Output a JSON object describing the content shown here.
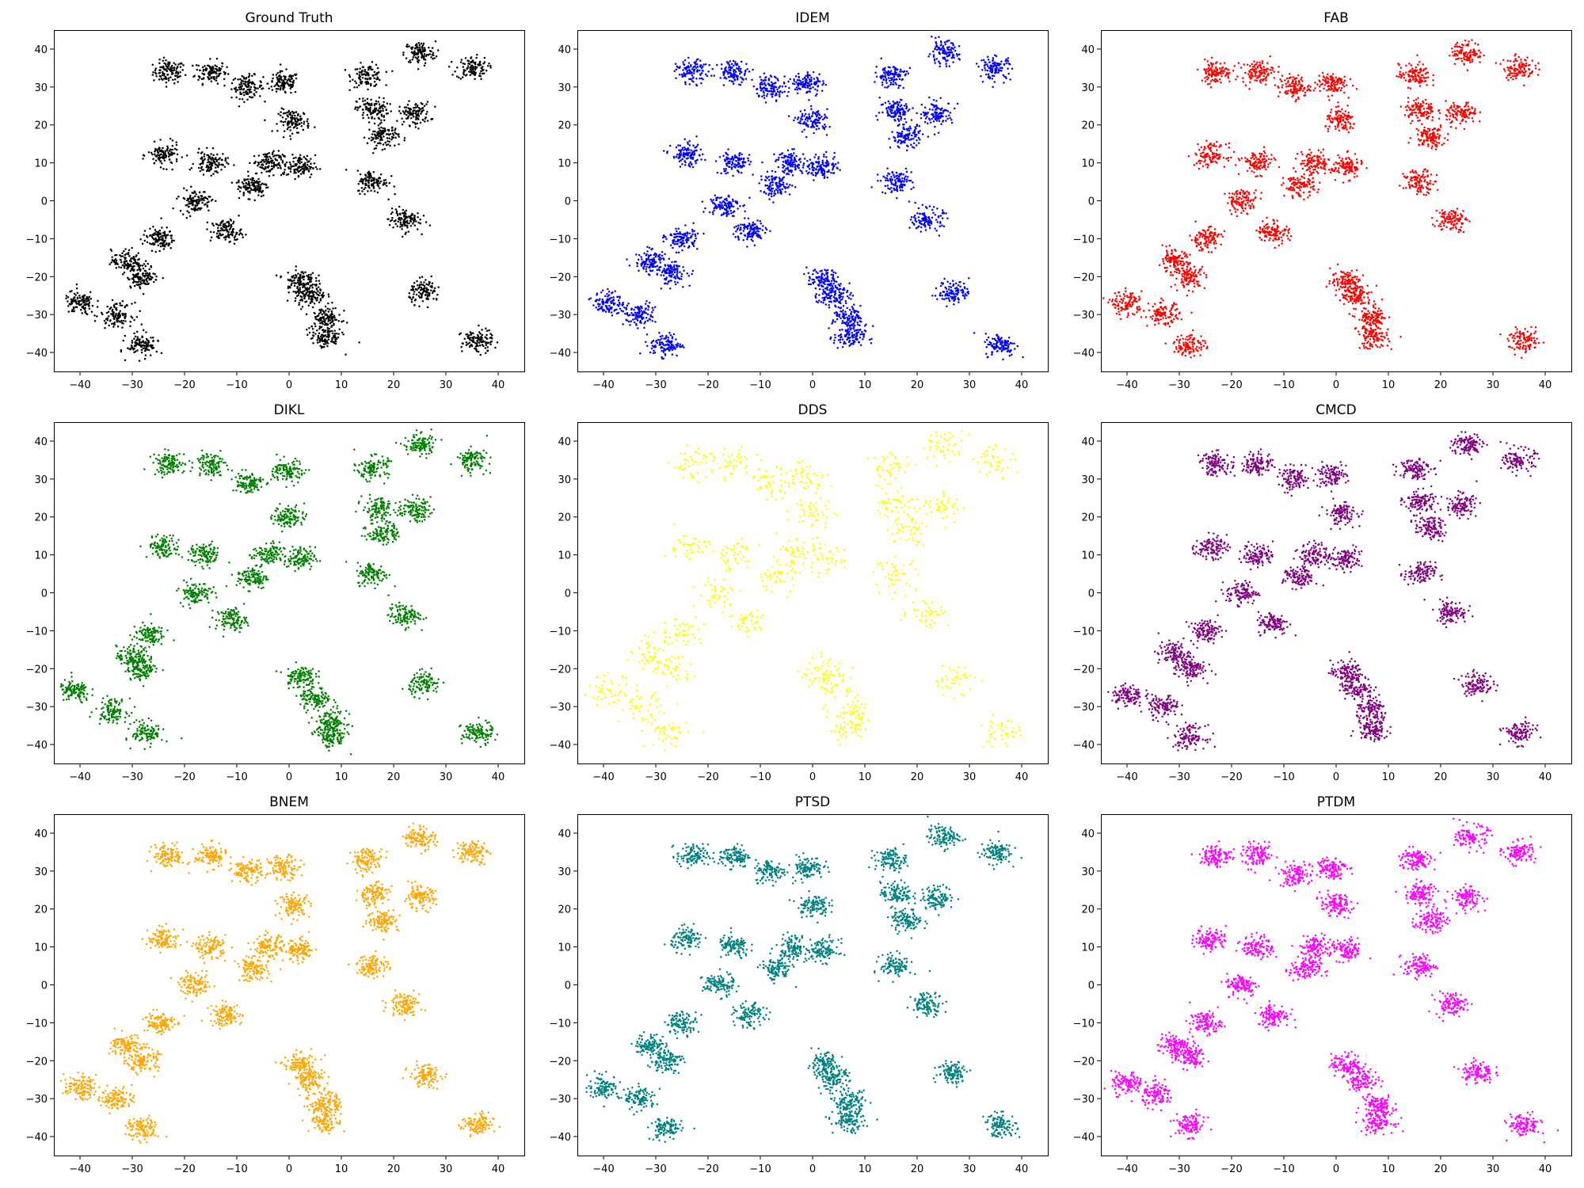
{
  "figure": {
    "layout": "3x3 grid of scatter plots",
    "panel_titles": [
      "Ground Truth",
      "IDEM",
      "FAB",
      "DIKL",
      "DDS",
      "CMCD",
      "BNEM",
      "PTSD",
      "PTDM"
    ]
  },
  "chart_data": [
    {
      "type": "scatter",
      "title": "Ground Truth",
      "color": "#000000",
      "xlim": [
        -45,
        45
      ],
      "ylim": [
        -45,
        45
      ],
      "xticks": [
        -40,
        -30,
        -20,
        -10,
        0,
        10,
        20,
        30,
        40
      ],
      "yticks": [
        -40,
        -30,
        -20,
        -10,
        0,
        10,
        20,
        30,
        40
      ],
      "xlabel": "",
      "ylabel": "",
      "grid": false,
      "clusters": [
        [
          -23,
          34
        ],
        [
          -15,
          34
        ],
        [
          -8,
          30
        ],
        [
          -1,
          31
        ],
        [
          15,
          33
        ],
        [
          25,
          39
        ],
        [
          35,
          35
        ],
        [
          16,
          24
        ],
        [
          24,
          23
        ],
        [
          1,
          21
        ],
        [
          18,
          17
        ],
        [
          -24,
          12
        ],
        [
          -15,
          10
        ],
        [
          -4,
          10
        ],
        [
          2,
          9
        ],
        [
          -7,
          4
        ],
        [
          16,
          5
        ],
        [
          -18,
          0
        ],
        [
          -12,
          -8
        ],
        [
          22,
          -5
        ],
        [
          -25,
          -10
        ],
        [
          -31,
          -16
        ],
        [
          -28,
          -20
        ],
        [
          2,
          -21
        ],
        [
          4,
          -25
        ],
        [
          26,
          -24
        ],
        [
          -40,
          -27
        ],
        [
          -33,
          -30
        ],
        [
          7,
          -31
        ],
        [
          7,
          -36
        ],
        [
          -28,
          -38
        ],
        [
          36,
          -37
        ]
      ]
    },
    {
      "type": "scatter",
      "title": "IDEM",
      "color": "#0000ff",
      "xlim": [
        -45,
        45
      ],
      "ylim": [
        -45,
        45
      ],
      "xticks": [
        -40,
        -30,
        -20,
        -10,
        0,
        10,
        20,
        30,
        40
      ],
      "yticks": [
        -40,
        -30,
        -20,
        -10,
        0,
        10,
        20,
        30,
        40
      ],
      "grid": false,
      "clusters": [
        [
          -23,
          34
        ],
        [
          -15,
          34
        ],
        [
          -8,
          30
        ],
        [
          -1,
          31
        ],
        [
          15,
          33
        ],
        [
          25,
          39
        ],
        [
          35,
          35
        ],
        [
          16,
          24
        ],
        [
          24,
          23
        ],
        [
          0,
          21
        ],
        [
          18,
          17
        ],
        [
          -24,
          12
        ],
        [
          -15,
          10
        ],
        [
          -4,
          10
        ],
        [
          2,
          9
        ],
        [
          -7,
          4
        ],
        [
          16,
          5
        ],
        [
          -17,
          -1
        ],
        [
          -12,
          -8
        ],
        [
          22,
          -5
        ],
        [
          -25,
          -10
        ],
        [
          -31,
          -16
        ],
        [
          -27,
          -19
        ],
        [
          2,
          -21
        ],
        [
          4,
          -25
        ],
        [
          27,
          -24
        ],
        [
          -39,
          -27
        ],
        [
          -33,
          -30
        ],
        [
          7,
          -31
        ],
        [
          7,
          -36
        ],
        [
          -28,
          -38
        ],
        [
          36,
          -38
        ]
      ]
    },
    {
      "type": "scatter",
      "title": "FAB",
      "color": "#ff0000",
      "xlim": [
        -45,
        45
      ],
      "ylim": [
        -45,
        45
      ],
      "xticks": [
        -40,
        -30,
        -20,
        -10,
        0,
        10,
        20,
        30,
        40
      ],
      "yticks": [
        -40,
        -30,
        -20,
        -10,
        0,
        10,
        20,
        30,
        40
      ],
      "grid": false,
      "clusters": [
        [
          -23,
          34
        ],
        [
          -15,
          34
        ],
        [
          -8,
          30
        ],
        [
          -1,
          31
        ],
        [
          15,
          33
        ],
        [
          25,
          39
        ],
        [
          35,
          35
        ],
        [
          16,
          24
        ],
        [
          24,
          23
        ],
        [
          1,
          21
        ],
        [
          18,
          17
        ],
        [
          -24,
          12
        ],
        [
          -15,
          10
        ],
        [
          -4,
          10
        ],
        [
          2,
          9
        ],
        [
          -7,
          4
        ],
        [
          16,
          5
        ],
        [
          -18,
          0
        ],
        [
          -12,
          -8
        ],
        [
          22,
          -5
        ],
        [
          -25,
          -10
        ],
        [
          -31,
          -16
        ],
        [
          -28,
          -20
        ],
        [
          2,
          -21
        ],
        [
          4,
          -25
        ],
        [
          -40,
          -27
        ],
        [
          -33,
          -30
        ],
        [
          7,
          -31
        ],
        [
          7,
          -36
        ],
        [
          -28,
          -38
        ],
        [
          36,
          -37
        ]
      ]
    },
    {
      "type": "scatter",
      "title": "DIKL",
      "color": "#008000",
      "xlim": [
        -45,
        45
      ],
      "ylim": [
        -45,
        45
      ],
      "xticks": [
        -40,
        -30,
        -20,
        -10,
        0,
        10,
        20,
        30,
        40
      ],
      "yticks": [
        -40,
        -30,
        -20,
        -10,
        0,
        10,
        20,
        30,
        40
      ],
      "grid": false,
      "clusters": [
        [
          -23,
          34
        ],
        [
          -15,
          34
        ],
        [
          -8,
          29
        ],
        [
          0,
          32
        ],
        [
          16,
          33
        ],
        [
          25,
          39
        ],
        [
          35,
          35
        ],
        [
          17,
          22
        ],
        [
          24,
          22
        ],
        [
          0,
          20
        ],
        [
          18,
          16
        ],
        [
          -24,
          12
        ],
        [
          -16,
          10
        ],
        [
          -4,
          10
        ],
        [
          2,
          9
        ],
        [
          -7,
          4
        ],
        [
          16,
          5
        ],
        [
          -18,
          0
        ],
        [
          -11,
          -7
        ],
        [
          22,
          -6
        ],
        [
          -27,
          -11
        ],
        [
          -30,
          -17
        ],
        [
          -28,
          -20
        ],
        [
          2,
          -22
        ],
        [
          5,
          -28
        ],
        [
          26,
          -24
        ],
        [
          -41,
          -26
        ],
        [
          -34,
          -31
        ],
        [
          8,
          -34
        ],
        [
          8,
          -38
        ],
        [
          -27,
          -37
        ],
        [
          36,
          -37
        ]
      ]
    },
    {
      "type": "scatter",
      "title": "DDS",
      "color": "#ffff00",
      "xlim": [
        -45,
        45
      ],
      "ylim": [
        -45,
        45
      ],
      "xticks": [
        -40,
        -30,
        -20,
        -10,
        0,
        10,
        20,
        30,
        40
      ],
      "yticks": [
        -40,
        -30,
        -20,
        -10,
        0,
        10,
        20,
        30,
        40
      ],
      "grid": false,
      "clusters": [
        [
          -23,
          34
        ],
        [
          -15,
          34
        ],
        [
          -8,
          29
        ],
        [
          -1,
          31
        ],
        [
          15,
          33
        ],
        [
          25,
          39
        ],
        [
          35,
          35
        ],
        [
          16,
          24
        ],
        [
          25,
          23
        ],
        [
          0,
          21
        ],
        [
          18,
          17
        ],
        [
          -24,
          12
        ],
        [
          -15,
          10
        ],
        [
          -4,
          10
        ],
        [
          2,
          9
        ],
        [
          -7,
          4
        ],
        [
          16,
          5
        ],
        [
          -18,
          0
        ],
        [
          -12,
          -8
        ],
        [
          22,
          -5
        ],
        [
          -25,
          -10
        ],
        [
          -31,
          -16
        ],
        [
          -27,
          -20
        ],
        [
          2,
          -21
        ],
        [
          4,
          -24
        ],
        [
          27,
          -23
        ],
        [
          -39,
          -26
        ],
        [
          -33,
          -30
        ],
        [
          8,
          -32
        ],
        [
          7,
          -36
        ],
        [
          -28,
          -37
        ],
        [
          36,
          -37
        ]
      ]
    },
    {
      "type": "scatter",
      "title": "CMCD",
      "color": "#800080",
      "xlim": [
        -45,
        45
      ],
      "ylim": [
        -45,
        45
      ],
      "xticks": [
        -40,
        -30,
        -20,
        -10,
        0,
        10,
        20,
        30,
        40
      ],
      "yticks": [
        -40,
        -30,
        -20,
        -10,
        0,
        10,
        20,
        30,
        40
      ],
      "grid": false,
      "clusters": [
        [
          -23,
          34
        ],
        [
          -15,
          34
        ],
        [
          -8,
          30
        ],
        [
          -1,
          31
        ],
        [
          15,
          33
        ],
        [
          25,
          39
        ],
        [
          35,
          35
        ],
        [
          16,
          24
        ],
        [
          24,
          23
        ],
        [
          1,
          21
        ],
        [
          18,
          17
        ],
        [
          -24,
          12
        ],
        [
          -15,
          10
        ],
        [
          -4,
          10
        ],
        [
          2,
          9
        ],
        [
          -7,
          4
        ],
        [
          16,
          5
        ],
        [
          -18,
          0
        ],
        [
          -12,
          -8
        ],
        [
          22,
          -5
        ],
        [
          -25,
          -10
        ],
        [
          -31,
          -16
        ],
        [
          -28,
          -20
        ],
        [
          2,
          -21
        ],
        [
          4,
          -25
        ],
        [
          27,
          -24
        ],
        [
          -40,
          -27
        ],
        [
          -33,
          -30
        ],
        [
          7,
          -31
        ],
        [
          7,
          -36
        ],
        [
          -28,
          -38
        ],
        [
          35,
          -37
        ]
      ]
    },
    {
      "type": "scatter",
      "title": "BNEM",
      "color": "#ffa500",
      "xlim": [
        -45,
        45
      ],
      "ylim": [
        -45,
        45
      ],
      "xticks": [
        -40,
        -30,
        -20,
        -10,
        0,
        10,
        20,
        30,
        40
      ],
      "yticks": [
        -40,
        -30,
        -20,
        -10,
        0,
        10,
        20,
        30,
        40
      ],
      "grid": false,
      "clusters": [
        [
          -23,
          34
        ],
        [
          -15,
          34
        ],
        [
          -8,
          30
        ],
        [
          -1,
          31
        ],
        [
          15,
          33
        ],
        [
          25,
          39
        ],
        [
          35,
          35
        ],
        [
          16,
          24
        ],
        [
          25,
          23
        ],
        [
          1,
          21
        ],
        [
          18,
          17
        ],
        [
          -24,
          12
        ],
        [
          -15,
          10
        ],
        [
          -4,
          10
        ],
        [
          2,
          9
        ],
        [
          -7,
          4
        ],
        [
          16,
          5
        ],
        [
          -18,
          0
        ],
        [
          -12,
          -8
        ],
        [
          22,
          -5
        ],
        [
          -25,
          -10
        ],
        [
          -31,
          -16
        ],
        [
          -28,
          -20
        ],
        [
          2,
          -21
        ],
        [
          4,
          -25
        ],
        [
          26,
          -24
        ],
        [
          -40,
          -27
        ],
        [
          -33,
          -30
        ],
        [
          7,
          -31
        ],
        [
          7,
          -36
        ],
        [
          -28,
          -38
        ],
        [
          36,
          -37
        ]
      ]
    },
    {
      "type": "scatter",
      "title": "PTSD",
      "color": "#008080",
      "xlim": [
        -45,
        45
      ],
      "ylim": [
        -45,
        45
      ],
      "xticks": [
        -40,
        -30,
        -20,
        -10,
        0,
        10,
        20,
        30,
        40
      ],
      "yticks": [
        -40,
        -30,
        -20,
        -10,
        0,
        10,
        20,
        30,
        40
      ],
      "grid": false,
      "clusters": [
        [
          -23,
          34
        ],
        [
          -15,
          34
        ],
        [
          -8,
          30
        ],
        [
          -1,
          31
        ],
        [
          15,
          33
        ],
        [
          25,
          39
        ],
        [
          35,
          35
        ],
        [
          16,
          24
        ],
        [
          24,
          23
        ],
        [
          0,
          21
        ],
        [
          18,
          17
        ],
        [
          -24,
          12
        ],
        [
          -15,
          10
        ],
        [
          -4,
          10
        ],
        [
          2,
          9
        ],
        [
          -7,
          4
        ],
        [
          16,
          5
        ],
        [
          -18,
          0
        ],
        [
          -12,
          -8
        ],
        [
          22,
          -5
        ],
        [
          -25,
          -10
        ],
        [
          -31,
          -16
        ],
        [
          -28,
          -20
        ],
        [
          2,
          -21
        ],
        [
          4,
          -25
        ],
        [
          27,
          -23
        ],
        [
          -40,
          -27
        ],
        [
          -33,
          -30
        ],
        [
          7,
          -31
        ],
        [
          7,
          -36
        ],
        [
          -28,
          -38
        ],
        [
          36,
          -37
        ]
      ]
    },
    {
      "type": "scatter",
      "title": "PTDM",
      "color": "#ff00ff",
      "xlim": [
        -45,
        45
      ],
      "ylim": [
        -45,
        45
      ],
      "xticks": [
        -40,
        -30,
        -20,
        -10,
        0,
        10,
        20,
        30,
        40
      ],
      "yticks": [
        -40,
        -30,
        -20,
        -10,
        0,
        10,
        20,
        30,
        40
      ],
      "grid": false,
      "clusters": [
        [
          -23,
          34
        ],
        [
          -15,
          34
        ],
        [
          -8,
          29
        ],
        [
          -1,
          31
        ],
        [
          15,
          33
        ],
        [
          26,
          39
        ],
        [
          35,
          35
        ],
        [
          16,
          24
        ],
        [
          25,
          23
        ],
        [
          0,
          21
        ],
        [
          18,
          17
        ],
        [
          -24,
          12
        ],
        [
          -15,
          10
        ],
        [
          -4,
          10
        ],
        [
          2,
          9
        ],
        [
          -6,
          4
        ],
        [
          16,
          5
        ],
        [
          -18,
          0
        ],
        [
          -12,
          -8
        ],
        [
          22,
          -5
        ],
        [
          -25,
          -10
        ],
        [
          -31,
          -16
        ],
        [
          -28,
          -19
        ],
        [
          2,
          -21
        ],
        [
          5,
          -25
        ],
        [
          27,
          -23
        ],
        [
          -40,
          -26
        ],
        [
          -34,
          -29
        ],
        [
          8,
          -32
        ],
        [
          8,
          -36
        ],
        [
          -28,
          -37
        ],
        [
          36,
          -37
        ]
      ]
    }
  ]
}
